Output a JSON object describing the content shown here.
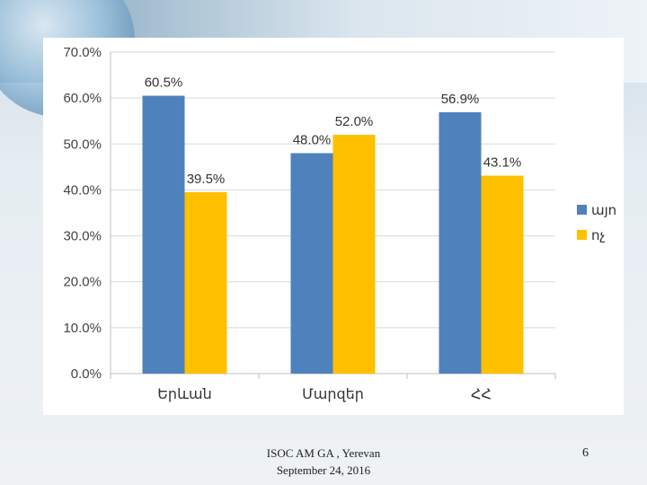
{
  "footer": {
    "line1": "ISOC AM GA , Yerevan",
    "line2": "September 24, 2016",
    "page_number": "6"
  },
  "chart_data": {
    "type": "bar",
    "categories": [
      "Երևան",
      "Մարզեր",
      "ՀՀ"
    ],
    "series": [
      {
        "name": "այո",
        "values": [
          60.5,
          48.0,
          56.9
        ],
        "color": "#4f81bd"
      },
      {
        "name": "ոչ",
        "values": [
          39.5,
          52.0,
          43.1
        ],
        "color": "#ffc000"
      }
    ],
    "value_labels": [
      [
        "60.5%",
        "48.0%",
        "56.9%"
      ],
      [
        "39.5%",
        "52.0%",
        "43.1%"
      ]
    ],
    "yticks": [
      "0.0%",
      "10.0%",
      "20.0%",
      "30.0%",
      "40.0%",
      "50.0%",
      "60.0%",
      "70.0%"
    ],
    "ylim": [
      0,
      70
    ],
    "grid": true,
    "legend": "right"
  }
}
